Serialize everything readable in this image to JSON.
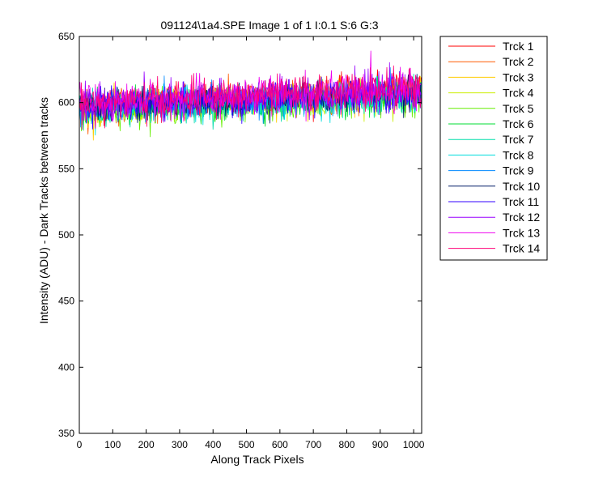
{
  "chart_data": {
    "type": "line",
    "title": "091124\\1a4.SPE  Image 1 of 1  I:0.1  S:6  G:3",
    "xlabel": "Along Track Pixels",
    "ylabel": "Intensity (ADU) - Dark Tracks between tracks",
    "xlim": [
      0,
      1024
    ],
    "ylim": [
      350,
      650
    ],
    "xticks": [
      0,
      100,
      200,
      300,
      400,
      500,
      600,
      700,
      800,
      900,
      1000
    ],
    "yticks": [
      350,
      400,
      450,
      500,
      550,
      600,
      650
    ],
    "grid": false,
    "legend_placement": "outside-right",
    "series": [
      {
        "name": "Trck 1",
        "color": "#ff0000",
        "trend": [
          597,
          602,
          606,
          610
        ],
        "noise_sd": 6
      },
      {
        "name": "Trck 2",
        "color": "#ff5a00",
        "trend": [
          596,
          601,
          605,
          609
        ],
        "noise_sd": 6
      },
      {
        "name": "Trck 3",
        "color": "#ffcc00",
        "trend": [
          595,
          599,
          603,
          606
        ],
        "noise_sd": 6
      },
      {
        "name": "Trck 4",
        "color": "#ccee00",
        "trend": [
          595,
          599,
          602,
          605
        ],
        "noise_sd": 6
      },
      {
        "name": "Trck 5",
        "color": "#66ee00",
        "trend": [
          594,
          598,
          601,
          604
        ],
        "noise_sd": 6
      },
      {
        "name": "Trck 6",
        "color": "#00dd33",
        "trend": [
          594,
          598,
          601,
          604
        ],
        "noise_sd": 6
      },
      {
        "name": "Trck 7",
        "color": "#00ddaa",
        "trend": [
          595,
          599,
          602,
          605
        ],
        "noise_sd": 6
      },
      {
        "name": "Trck 8",
        "color": "#00dddd",
        "trend": [
          595,
          599,
          602,
          605
        ],
        "noise_sd": 6
      },
      {
        "name": "Trck 9",
        "color": "#0088ff",
        "trend": [
          596,
          600,
          603,
          606
        ],
        "noise_sd": 6
      },
      {
        "name": "Trck 10",
        "color": "#001a66",
        "trend": [
          596,
          600,
          604,
          607
        ],
        "noise_sd": 6
      },
      {
        "name": "Trck 11",
        "color": "#3300ff",
        "trend": [
          597,
          601,
          605,
          608
        ],
        "noise_sd": 6
      },
      {
        "name": "Trck 12",
        "color": "#9900ff",
        "trend": [
          598,
          602,
          606,
          609
        ],
        "noise_sd": 7
      },
      {
        "name": "Trck 13",
        "color": "#ee00ee",
        "trend": [
          599,
          603,
          607,
          611
        ],
        "noise_sd": 7
      },
      {
        "name": "Trck 14",
        "color": "#ff0077",
        "trend": [
          599,
          603,
          607,
          611
        ],
        "noise_sd": 7
      }
    ]
  }
}
